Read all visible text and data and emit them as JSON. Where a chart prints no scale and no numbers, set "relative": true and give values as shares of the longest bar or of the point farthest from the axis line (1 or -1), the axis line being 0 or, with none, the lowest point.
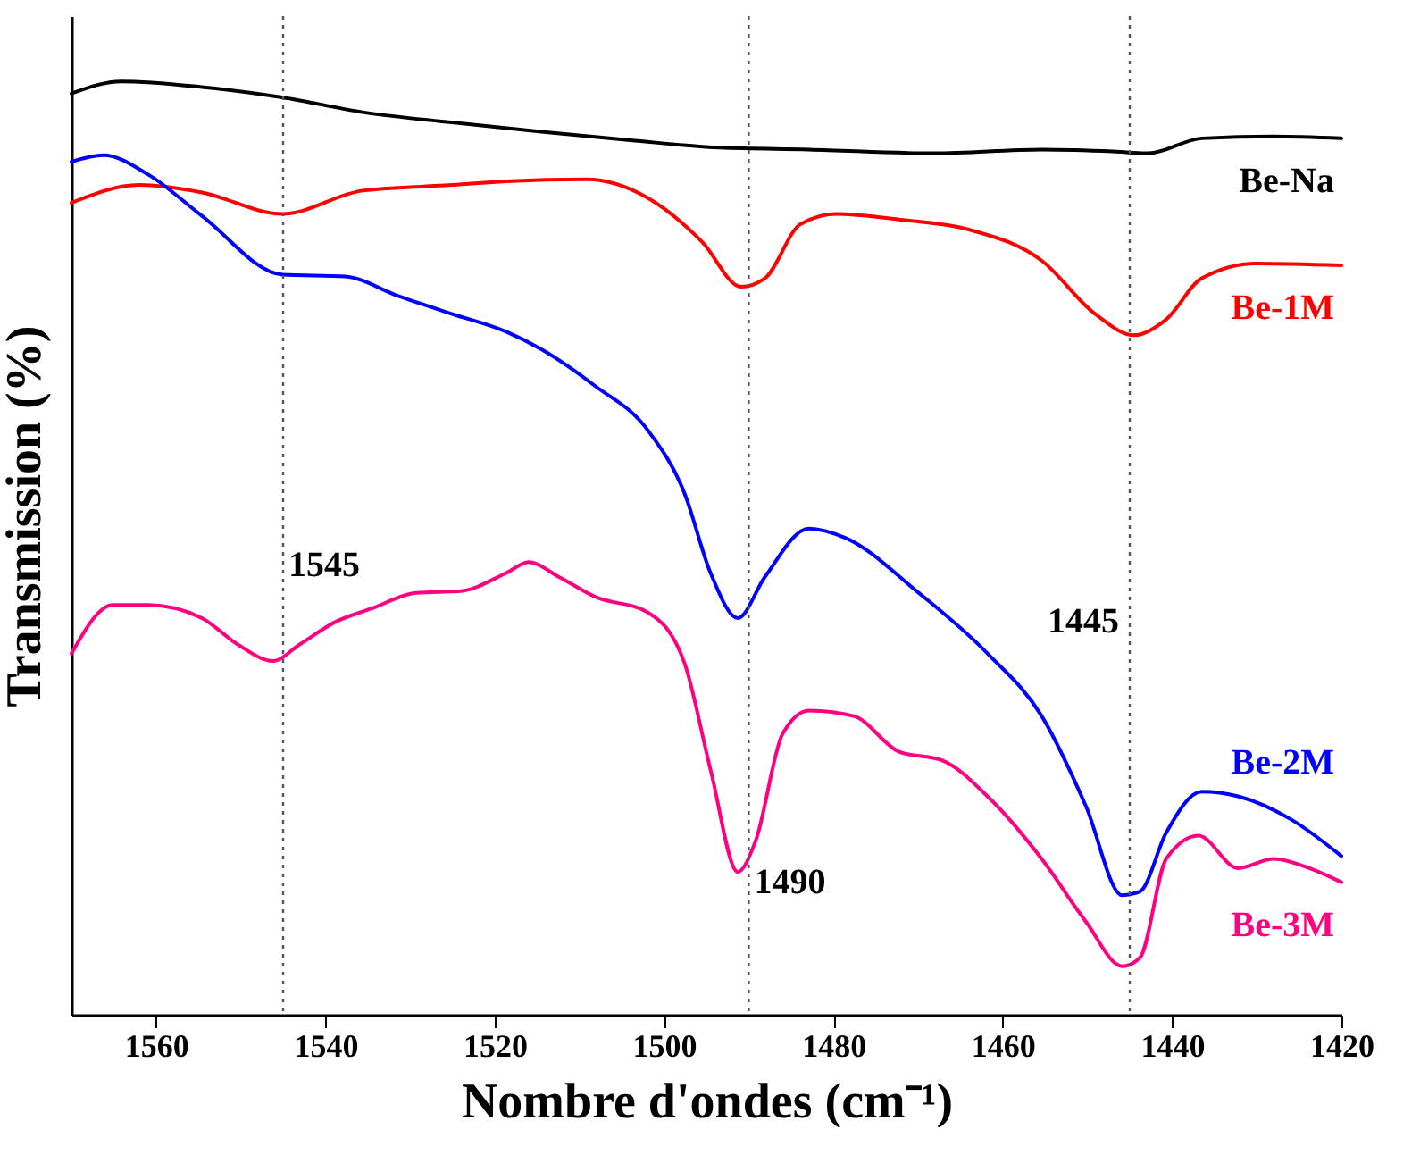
{
  "chart_data": {
    "type": "line",
    "relative": true,
    "xlabel": "Nombre d'ondes (cm⁻¹)",
    "ylabel": "Transmission (%)",
    "xlim": [
      1570,
      1420
    ],
    "xticks": [
      1560,
      1540,
      1520,
      1500,
      1480,
      1460,
      1440,
      1420
    ],
    "grid": false,
    "legend": false,
    "series": [
      {
        "name": "Be-Na",
        "color": "#000000",
        "x": [
          1570,
          1564.1,
          1554.6,
          1545.1,
          1535.6,
          1525.1,
          1514.5,
          1504,
          1493.4,
          1482.9,
          1468.1,
          1455.4,
          1447,
          1442.8,
          1436.5,
          1428,
          1420
        ],
        "values": [
          0.987,
          1,
          0.994,
          0.983,
          0.967,
          0.956,
          0.946,
          0.937,
          0.929,
          0.927,
          0.923,
          0.927,
          0.925,
          0.923,
          0.939,
          0.941,
          0.939
        ]
      },
      {
        "name": "Be-1M",
        "color": "#ff0000",
        "x": [
          1570,
          1562,
          1554.6,
          1545.1,
          1535.6,
          1525.1,
          1518.7,
          1509.2,
          1501.9,
          1495.5,
          1490.9,
          1488.1,
          1483.9,
          1479.7,
          1472.3,
          1463.9,
          1455.4,
          1449.1,
          1444.5,
          1440.7,
          1436.5,
          1430.1,
          1420
        ],
        "values": [
          0.87,
          0.889,
          0.881,
          0.858,
          0.883,
          0.889,
          0.893,
          0.895,
          0.875,
          0.828,
          0.78,
          0.789,
          0.847,
          0.858,
          0.852,
          0.841,
          0.808,
          0.751,
          0.728,
          0.745,
          0.789,
          0.805,
          0.803
        ]
      },
      {
        "name": "Be-2M",
        "color": "#0000ff",
        "x": [
          1570,
          1566.2,
          1560.9,
          1554.6,
          1545.1,
          1537.7,
          1531.4,
          1525.1,
          1518.7,
          1514.5,
          1508.2,
          1501.9,
          1497.6,
          1494.5,
          1491.3,
          1488.1,
          1482.9,
          1478.6,
          1470.2,
          1461.8,
          1455.4,
          1450.2,
          1445.9,
          1443.8,
          1440.7,
          1436.5,
          1432.2,
          1425.9,
          1420
        ],
        "values": [
          0.914,
          0.921,
          0.9,
          0.856,
          0.793,
          0.791,
          0.77,
          0.751,
          0.732,
          0.713,
          0.674,
          0.626,
          0.559,
          0.473,
          0.425,
          0.469,
          0.521,
          0.511,
          0.454,
          0.387,
          0.32,
          0.224,
          0.128,
          0.132,
          0.195,
          0.239,
          0.234,
          0.209,
          0.17
        ]
      },
      {
        "name": "Be-3M",
        "color": "#ff0080",
        "x": [
          1570,
          1565.1,
          1560.9,
          1554.6,
          1550.4,
          1546.2,
          1543,
          1538.8,
          1534.6,
          1529.3,
          1524,
          1518.7,
          1516,
          1512.4,
          1508.2,
          1501.9,
          1497.6,
          1494.5,
          1491.3,
          1489.2,
          1486,
          1482.9,
          1477.6,
          1472.3,
          1467,
          1461.8,
          1455.4,
          1450.2,
          1445.9,
          1443.8,
          1440.7,
          1436.9,
          1432.2,
          1428,
          1423.8,
          1420
        ],
        "values": [
          0.387,
          0.439,
          0.439,
          0.425,
          0.397,
          0.379,
          0.397,
          0.421,
          0.435,
          0.452,
          0.454,
          0.473,
          0.485,
          0.469,
          0.448,
          0.431,
          0.377,
          0.262,
          0.153,
          0.186,
          0.301,
          0.326,
          0.32,
          0.282,
          0.272,
          0.234,
          0.167,
          0.1,
          0.052,
          0.061,
          0.167,
          0.192,
          0.157,
          0.167,
          0.157,
          0.142
        ]
      }
    ],
    "ref_lines": [
      {
        "axis": "x",
        "value": 1545,
        "color": "#555555",
        "line_style": "dotted"
      },
      {
        "axis": "x",
        "value": 1490,
        "color": "#555555",
        "line_style": "dotted"
      },
      {
        "axis": "x",
        "value": 1445,
        "color": "#555555",
        "line_style": "dotted"
      }
    ],
    "annotations": [
      {
        "text": "1545",
        "x": 1545,
        "y": 0.481
      },
      {
        "text": "1490",
        "x": 1490,
        "y": 0.142
      },
      {
        "text": "1445",
        "x": 1445,
        "y": 0.421
      }
    ]
  }
}
